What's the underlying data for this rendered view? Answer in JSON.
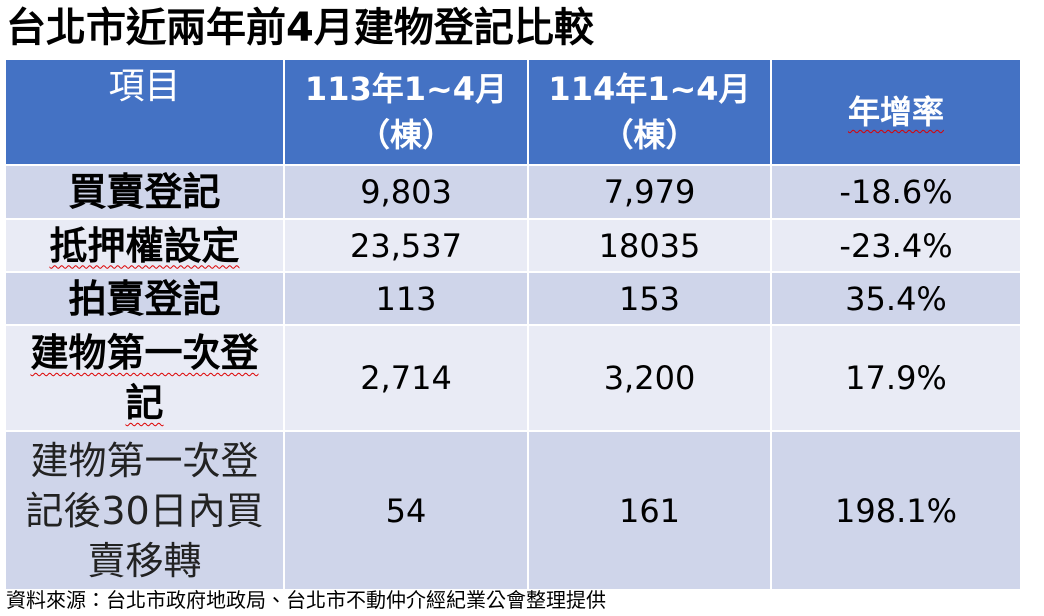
{
  "title": "台北市近兩年前4月建物登記比較",
  "table": {
    "header": [
      "項目",
      "113年1~4月\n（棟）",
      "114年1~4月\n（棟）",
      "年增率"
    ],
    "rows": [
      [
        "買賣登記",
        "9,803",
        "7,979",
        "-18.6%"
      ],
      [
        "抵押權設定",
        "23,537",
        "18035",
        "-23.4%"
      ],
      [
        "拍賣登記",
        "113",
        "153",
        "35.4%"
      ],
      [
        "建物第一次登記",
        "2,714",
        "3,200",
        "17.9%"
      ],
      [
        "建物第一次登記後30日內買賣移轉",
        "54",
        "161",
        "198.1%"
      ]
    ]
  },
  "source": "資料來源：台北市政府地政局、台北市不動仲介經紀業公會整理提供"
}
